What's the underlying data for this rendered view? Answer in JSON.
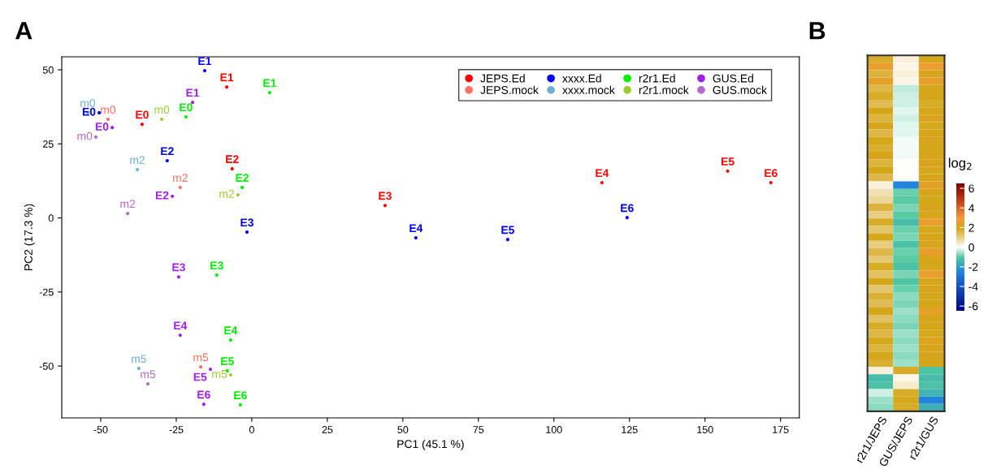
{
  "chart_data": [
    {
      "type": "scatter",
      "title": "A",
      "xlabel": "PC1 (45.1 %)",
      "ylabel": "PC2 (17.3 %)",
      "xlim": [
        -62.9,
        181.2
      ],
      "ylim": [
        -67.5,
        54.4
      ],
      "xticks": [
        -50,
        -25,
        0,
        25,
        50,
        75,
        100,
        125,
        150,
        175
      ],
      "yticks": [
        -50,
        -25,
        0,
        25,
        50
      ],
      "grid": false,
      "legend": "top right",
      "marker": "circle",
      "series": [
        {
          "name": "JEPS.Ed",
          "color": "#ff0000",
          "x": [
            -36.3,
            -8.3,
            -6.5,
            44.1,
            115.9,
            157.5,
            171.8
          ],
          "values": [
            31.6,
            44.2,
            16.6,
            4.2,
            11.9,
            15.8,
            11.9
          ],
          "value_labels": [
            "E0",
            "E1",
            "E2",
            "E3",
            "E4",
            "E5",
            "E6"
          ]
        },
        {
          "name": "JEPS.mock",
          "color": "#ff6f61",
          "x": [
            -47.6,
            -23.7,
            -16.9
          ],
          "values": [
            33.3,
            10.3,
            -50.3
          ],
          "value_labels": [
            "m0",
            "m2",
            "m5"
          ]
        },
        {
          "name": "xxxx.Ed",
          "color": "#0000ff",
          "x": [
            -50.5,
            -15.6,
            -28.0,
            -1.6,
            54.3,
            84.7,
            124.2
          ],
          "values": [
            35.5,
            49.7,
            19.3,
            -4.8,
            -6.7,
            -7.3,
            0.1
          ],
          "value_labels": [
            "E0",
            "E1",
            "E2",
            "E3",
            "E4",
            "E5",
            "E6"
          ]
        },
        {
          "name": "xxxx.mock",
          "color": "#6baed6",
          "x": [
            -54.3,
            -37.9,
            -37.4
          ],
          "values": [
            35.5,
            16.3,
            -50.8
          ],
          "value_labels": [
            "m0",
            "m2",
            "m5"
          ]
        },
        {
          "name": "r2r1.Ed",
          "color": "#00ee00",
          "x": [
            -21.8,
            5.9,
            -3.2,
            -11.6,
            -7.0,
            -8.1,
            -3.8
          ],
          "values": [
            34.1,
            42.3,
            10.3,
            -19.3,
            -41.2,
            -51.6,
            -63.1
          ],
          "value_labels": [
            "E0",
            "E1",
            "E2",
            "E3",
            "E4",
            "E5",
            "E6"
          ]
        },
        {
          "name": "r2r1.mock",
          "color": "#9acd32",
          "x": [
            -29.8,
            -4.6,
            -7.0
          ],
          "values": [
            33.3,
            7.8,
            -53.0
          ],
          "value_labels": [
            "m0",
            "m2",
            "m5"
          ]
        },
        {
          "name": "GUS.Ed",
          "color": "#a020f0",
          "x": [
            -46.2,
            -19.6,
            -26.3,
            -24.2,
            -23.7,
            -13.7,
            -15.9
          ],
          "values": [
            30.5,
            39.0,
            7.3,
            -19.9,
            -39.6,
            -51.1,
            -62.9
          ],
          "value_labels": [
            "E0",
            "E1",
            "E2",
            "E3",
            "E4",
            "E5",
            "E6"
          ]
        },
        {
          "name": "GUS.mock",
          "color": "#b469c8",
          "x": [
            -51.6,
            -41.1,
            -34.4
          ],
          "values": [
            27.3,
            1.5,
            -56.0
          ],
          "value_labels": [
            "m0",
            "m2",
            "m5"
          ]
        }
      ]
    },
    {
      "type": "heatmap",
      "title": "B",
      "clabel": "log$_{2}$",
      "categories": [
        "r2r1/JEPS",
        "GUS/JEPS",
        "r2r1/GUS"
      ],
      "y_categories": [
        null,
        null,
        null,
        null,
        null,
        null,
        null,
        null,
        null,
        null,
        null,
        null,
        null,
        null,
        null,
        null,
        null,
        null,
        null,
        null,
        null,
        null,
        null,
        null,
        null,
        null,
        null,
        null,
        null,
        null,
        null,
        null,
        null,
        null,
        null,
        null,
        null,
        null,
        null,
        null,
        null,
        null,
        null,
        null,
        null,
        null,
        null,
        null
      ],
      "clim": [
        -6.5,
        6.5
      ],
      "cticks": [
        -6,
        -4,
        -2,
        0,
        2,
        4,
        6
      ],
      "cells": [
        [
          1.8,
          0.3,
          1.9
        ],
        [
          2.6,
          0.2,
          2.7
        ],
        [
          1.6,
          0.3,
          2.1
        ],
        [
          2.4,
          0.2,
          2.5
        ],
        [
          1.5,
          -0.4,
          1.9
        ],
        [
          1.8,
          -0.3,
          2.0
        ],
        [
          1.4,
          -0.3,
          1.8
        ],
        [
          1.9,
          -0.2,
          2.0
        ],
        [
          1.6,
          -0.3,
          2.2
        ],
        [
          2.0,
          -0.2,
          1.9
        ],
        [
          1.5,
          -0.2,
          2.0
        ],
        [
          1.9,
          -0.1,
          2.1
        ],
        [
          1.7,
          -0.1,
          1.9
        ],
        [
          2.0,
          -0.1,
          2.0
        ],
        [
          1.6,
          0.0,
          2.1
        ],
        [
          1.9,
          0.0,
          1.9
        ],
        [
          1.5,
          0.0,
          2.0
        ],
        [
          0.3,
          -2.5,
          2.4
        ],
        [
          0.6,
          -0.9,
          2.0
        ],
        [
          0.8,
          -1.0,
          1.9
        ],
        [
          1.6,
          -0.8,
          2.1
        ],
        [
          1.0,
          -1.0,
          2.0
        ],
        [
          1.8,
          -1.3,
          2.6
        ],
        [
          1.2,
          -0.9,
          1.9
        ],
        [
          1.9,
          -0.8,
          2.0
        ],
        [
          1.0,
          -1.2,
          2.1
        ],
        [
          1.5,
          -0.9,
          2.5
        ],
        [
          1.1,
          -1.0,
          2.0
        ],
        [
          1.8,
          -1.2,
          1.9
        ],
        [
          1.3,
          -0.8,
          2.6
        ],
        [
          1.9,
          -1.1,
          2.0
        ],
        [
          1.2,
          -0.9,
          2.1
        ],
        [
          1.7,
          -0.7,
          1.9
        ],
        [
          1.4,
          -0.8,
          2.0
        ],
        [
          1.9,
          -0.6,
          2.4
        ],
        [
          1.3,
          -0.7,
          2.0
        ],
        [
          1.8,
          -0.8,
          2.0
        ],
        [
          1.5,
          -0.6,
          1.9
        ],
        [
          1.9,
          -0.7,
          2.2
        ],
        [
          1.6,
          -0.6,
          2.0
        ],
        [
          1.9,
          -0.7,
          2.1
        ],
        [
          1.7,
          -0.6,
          2.0
        ],
        [
          0.3,
          1.8,
          -1.1
        ],
        [
          -1.3,
          0.2,
          -1.3
        ],
        [
          -1.2,
          0.4,
          -1.2
        ],
        [
          -0.3,
          1.8,
          -1.5
        ],
        [
          -0.6,
          1.9,
          -2.5
        ],
        [
          -0.7,
          1.8,
          -1.6
        ]
      ]
    }
  ]
}
